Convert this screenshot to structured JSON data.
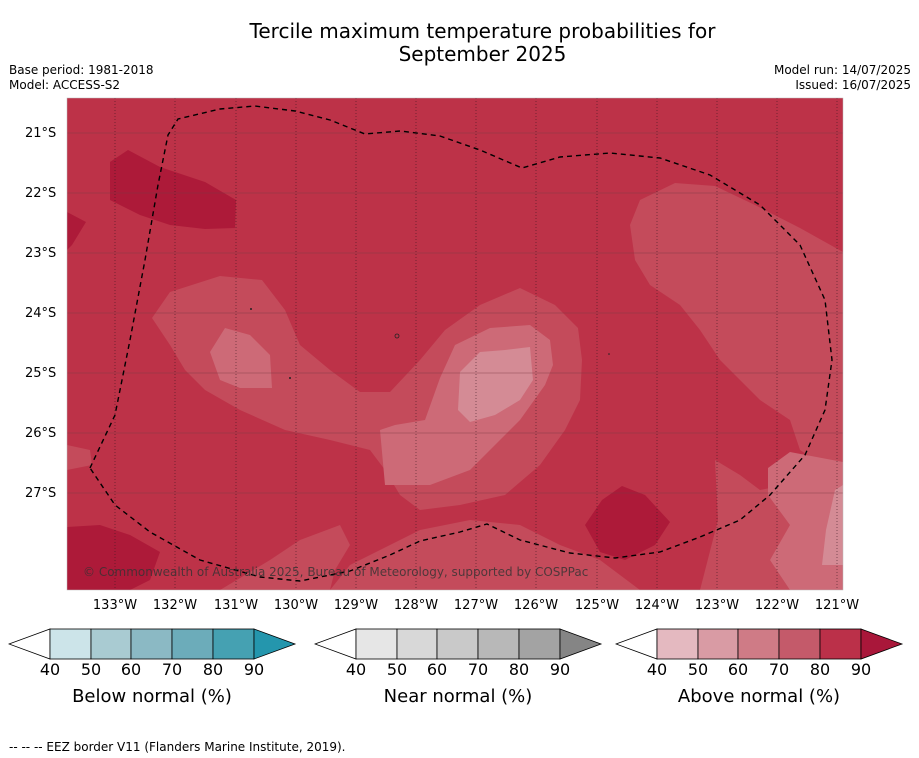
{
  "title_line1": "Tercile maximum temperature probabilities for",
  "title_line2": "September 2025",
  "base_period": "Base period: 1981-2018",
  "model": "Model: ACCESS-S2",
  "model_run": "Model run: 14/07/2025",
  "issued": "Issued: 16/07/2025",
  "credit": "© Commonwealth of Australia 2025, Bureau of Meteorology, supported by COSPPac",
  "eez_note": "-- -- -- EEZ border V11 (Flanders Marine Institute, 2019).",
  "lat_labels": [
    "21°S",
    "22°S",
    "23°S",
    "24°S",
    "25°S",
    "26°S",
    "27°S"
  ],
  "lon_labels": [
    "133°W",
    "132°W",
    "131°W",
    "130°W",
    "129°W",
    "128°W",
    "127°W",
    "126°W",
    "125°W",
    "124°W",
    "123°W",
    "122°W",
    "121°W"
  ],
  "colorbars": [
    {
      "name": "below",
      "title": "Below normal (%)",
      "ticks": [
        "40",
        "50",
        "60",
        "70",
        "80",
        "90"
      ],
      "colors": [
        "#ffffff",
        "#cce4e9",
        "#a9cbd2",
        "#8bb9c4",
        "#6cacba",
        "#45a1b2",
        "#2496ad"
      ]
    },
    {
      "name": "near",
      "title": "Near normal (%)",
      "ticks": [
        "40",
        "50",
        "60",
        "70",
        "80",
        "90"
      ],
      "colors": [
        "#ffffff",
        "#e6e6e6",
        "#d8d8d8",
        "#c9c9c9",
        "#b8b8b8",
        "#a3a3a3",
        "#858585"
      ]
    },
    {
      "name": "above",
      "title": "Above normal (%)",
      "ticks": [
        "40",
        "50",
        "60",
        "70",
        "80",
        "90"
      ],
      "colors": [
        "#ffffff",
        "#e4b9c0",
        "#d99ba4",
        "#cf7b86",
        "#c45a6a",
        "#bb3049",
        "#a9173a"
      ]
    }
  ],
  "map_colors": {
    "level_90": "#ad1a39",
    "level_80": "#bd3248",
    "level_70": "#c44b5b",
    "level_60": "#cd6a77",
    "level_50": "#d48b95",
    "level_40": "#dfadb4"
  }
}
